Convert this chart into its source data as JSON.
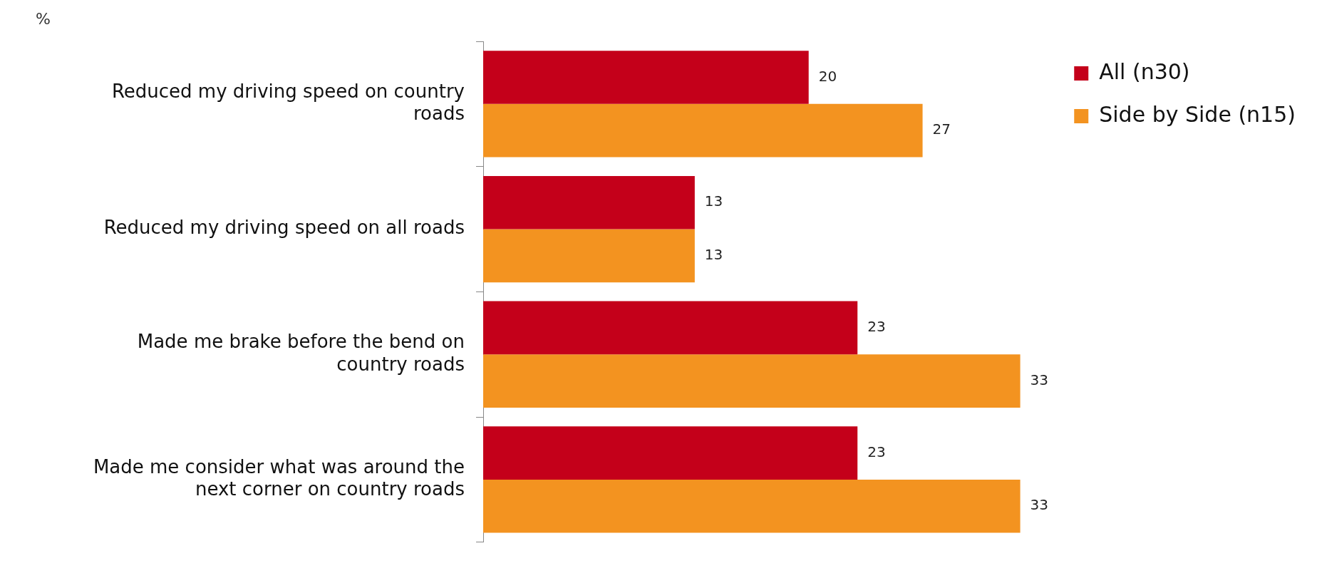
{
  "chart_data": {
    "type": "bar",
    "orientation": "horizontal",
    "xlabel": "%",
    "categories": [
      "Reduced my driving speed on country roads",
      "Reduced my driving speed on all roads",
      "Made me brake before the bend on country roads",
      "Made me consider what was around the next corner on country roads"
    ],
    "series": [
      {
        "name": "All (n30)",
        "color": "#c4001a",
        "values": [
          20,
          13,
          23,
          23
        ]
      },
      {
        "name": "Side by Side (n15)",
        "color": "#f39320",
        "values": [
          27,
          13,
          33,
          33
        ]
      }
    ],
    "data_labels": true,
    "legend": "top right"
  }
}
